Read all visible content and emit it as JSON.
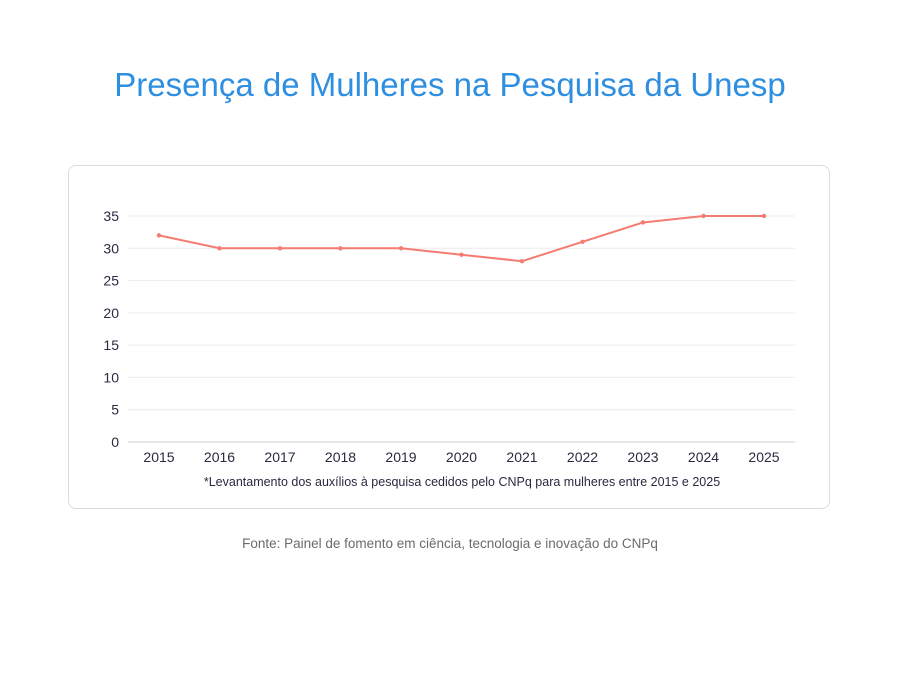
{
  "title": "Presença de Mulheres na Pesquisa da Unesp",
  "source": "Fonte: Painel de fomento em ciência, tecnologia e inovação do CNPq",
  "chart_data": {
    "type": "line",
    "title": "Presença de Mulheres na Pesquisa da Unesp",
    "categories": [
      "2015",
      "2016",
      "2017",
      "2018",
      "2019",
      "2020",
      "2021",
      "2022",
      "2023",
      "2024",
      "2025"
    ],
    "values": [
      32,
      30,
      30,
      30,
      30,
      29,
      28,
      31,
      34,
      35,
      35
    ],
    "ylim": [
      0,
      35
    ],
    "yticks": [
      0,
      5,
      10,
      15,
      20,
      25,
      30,
      35
    ],
    "grid": true,
    "line_color": "#f47c72",
    "annotation": "*Levantamento dos auxílios à pesquisa cedidos pelo CNPq para mulheres entre 2015 e 2025"
  }
}
